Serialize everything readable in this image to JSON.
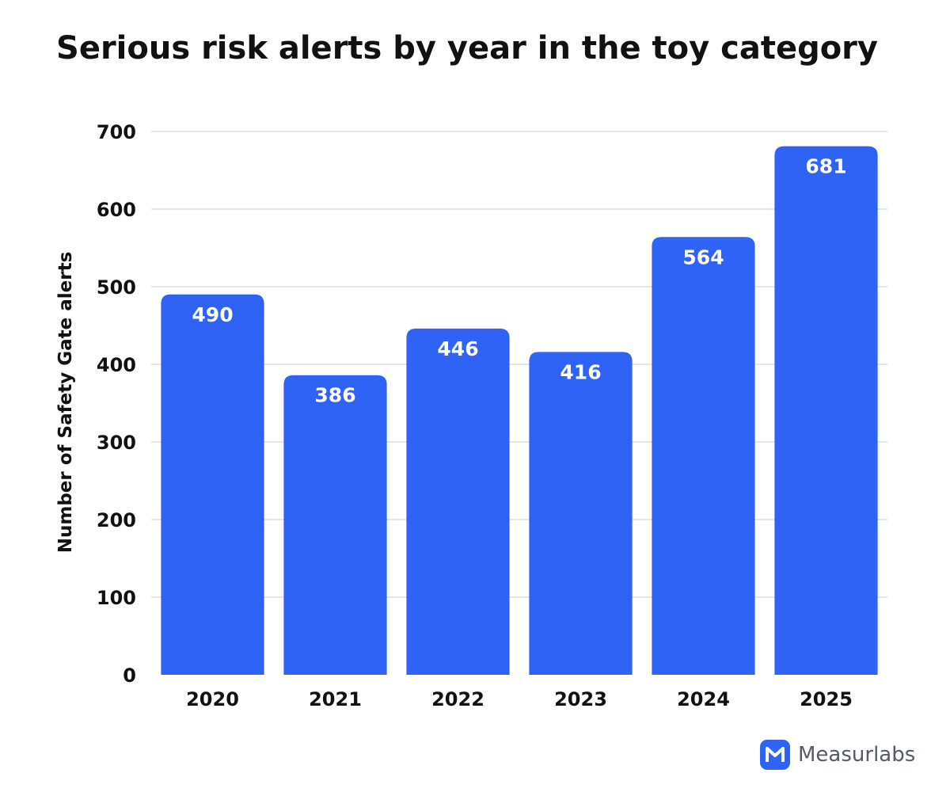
{
  "chart_data": {
    "type": "bar",
    "title": "Serious risk alerts by year in the toy category",
    "xlabel": "",
    "ylabel": "Number of Safety Gate alerts",
    "categories": [
      "2020",
      "2021",
      "2022",
      "2023",
      "2024",
      "2025"
    ],
    "values": [
      490,
      386,
      446,
      416,
      564,
      681
    ],
    "data_labels": [
      "490",
      "386",
      "446",
      "416",
      "564",
      "681"
    ],
    "ylim": [
      0,
      700
    ],
    "yticks": [
      "0",
      "100",
      "200",
      "300",
      "400",
      "500",
      "600",
      "700"
    ],
    "grid": true,
    "legend": "none",
    "bar_color": "#2f63f5",
    "grid_color": "#dddddd"
  },
  "brand": {
    "name": "Measurlabs",
    "icon": "m-logo-icon",
    "icon_color": "#2f63f5"
  }
}
